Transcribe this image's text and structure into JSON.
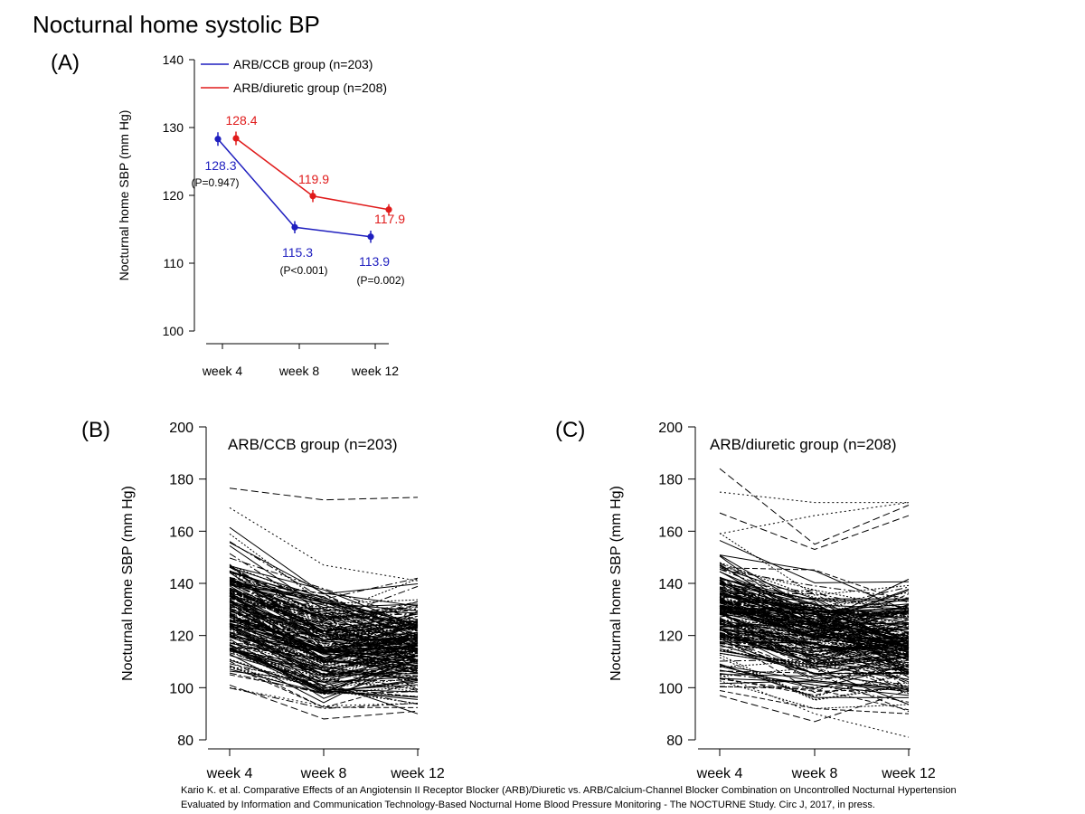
{
  "page_title": "Nocturnal home systolic BP",
  "citation": {
    "line1": "Kario K. et al. Comparative Effects of an Angiotensin II Receptor Blocker (ARB)/Diuretic vs. ARB/Calcium-Channel Blocker Combination on Uncontrolled Nocturnal Hypertension",
    "line2": "Evaluated by Information and Communication Technology-Based Nocturnal Home Blood Pressure Monitoring   - The NOCTURNE Study. Circ J, 2017, in press."
  },
  "colors": {
    "ccb": "#1f1fbf",
    "diuretic": "#e01b1b",
    "text": "#000000"
  },
  "chart_data": [
    {
      "panel": "(A)",
      "type": "line",
      "ylabel": "Nocturnal home SBP (mm Hg)",
      "categories": [
        "week 4",
        "week 8",
        "week 12"
      ],
      "ylim": [
        100,
        140
      ],
      "yticks": [
        100,
        110,
        120,
        130,
        140
      ],
      "legend_position": "top-right",
      "series": [
        {
          "name": "ARB/CCB group (n=203)",
          "color": "#1f1fbf",
          "values": [
            128.3,
            115.3,
            113.9
          ],
          "errors": [
            1.0,
            0.9,
            0.9
          ],
          "labels": [
            "128.3",
            "115.3",
            "113.9"
          ],
          "pvalues": [
            "(P=0.947)",
            "(P<0.001)",
            "(P=0.002)"
          ]
        },
        {
          "name": "ARB/diuretic group (n=208)",
          "color": "#e01b1b",
          "values": [
            128.4,
            119.9,
            117.9
          ],
          "errors": [
            1.0,
            0.9,
            0.8
          ],
          "labels": [
            "128.4",
            "119.9",
            "117.9"
          ]
        }
      ]
    },
    {
      "panel": "(B)",
      "type": "line",
      "title": "ARB/CCB group (n=203)",
      "ylabel": "Nocturnal home SBP (mm Hg)",
      "categories": [
        "week 4",
        "week 8",
        "week 12"
      ],
      "ylim": [
        80,
        200
      ],
      "yticks": [
        80,
        100,
        120,
        140,
        160,
        180,
        200
      ],
      "individual_series_count": 203,
      "series_highlight": [
        {
          "values": [
            176.5,
            172,
            173
          ]
        },
        {
          "values": [
            169,
            147,
            141
          ]
        },
        {
          "values": [
            101,
            88,
            91
          ]
        },
        {
          "values": [
            100,
            93,
            94
          ]
        }
      ],
      "distribution": {
        "week 4_mean": 128.3,
        "week 8_mean": 115.3,
        "week 12_mean": 113.9
      }
    },
    {
      "panel": "(C)",
      "type": "line",
      "title": "ARB/diuretic group (n=208)",
      "ylabel": "Nocturnal home SBP (mm Hg)",
      "categories": [
        "week 4",
        "week 8",
        "week 12"
      ],
      "ylim": [
        80,
        200
      ],
      "yticks": [
        80,
        100,
        120,
        140,
        160,
        180,
        200
      ],
      "individual_series_count": 208,
      "series_highlight": [
        {
          "values": [
            184,
            155,
            170
          ]
        },
        {
          "values": [
            175,
            171,
            171
          ]
        },
        {
          "values": [
            167,
            153,
            166
          ]
        },
        {
          "values": [
            159,
            166,
            171
          ]
        },
        {
          "values": [
            97,
            87,
            99
          ]
        },
        {
          "values": [
            105,
            90,
            81
          ]
        }
      ],
      "distribution": {
        "week 4_mean": 128.4,
        "week 8_mean": 119.9,
        "week 12_mean": 117.9
      }
    }
  ]
}
